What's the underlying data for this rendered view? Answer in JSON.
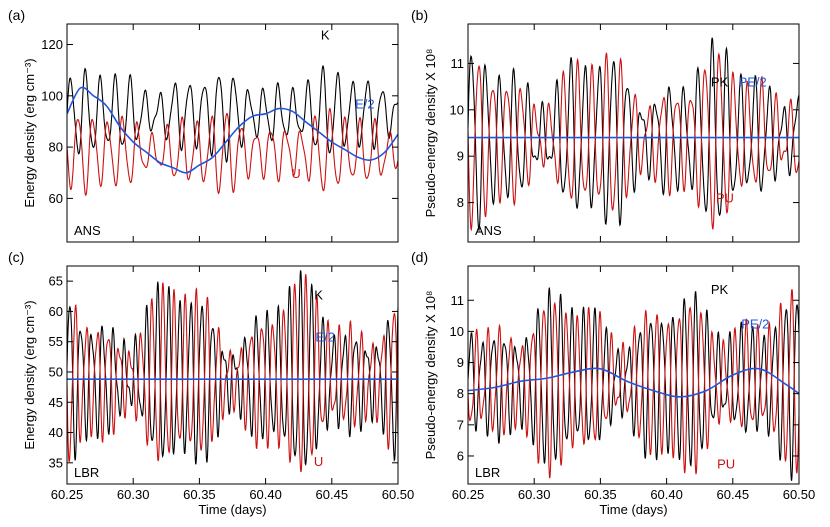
{
  "colors": {
    "K": "#000000",
    "U": "#cc1111",
    "E": "#2255dd"
  },
  "chart_data": [
    {
      "type": "line",
      "panel_label": "(a)",
      "caption": "ANS",
      "xlabel": "",
      "ylabel": "Energy density (erg cm⁻³)",
      "xlim": [
        60.25,
        60.5
      ],
      "ylim": [
        43,
        128
      ],
      "yticks": [
        60,
        80,
        100,
        120
      ],
      "xticks": [
        60.25,
        60.3,
        60.35,
        60.4,
        60.45,
        60.5
      ],
      "xtick_labels": [
        "",
        "",
        "",
        "",
        "",
        ""
      ],
      "series": [
        {
          "name": "K",
          "mean": 93,
          "amp": 15,
          "period": 0.0112,
          "phase": 0.0,
          "mod": 0.45,
          "color_key": "K"
        },
        {
          "name": "U",
          "mean": 78,
          "amp": 14,
          "period": 0.0112,
          "phase": 3.14,
          "mod": 0.45,
          "color_key": "U"
        },
        {
          "name": "E/2",
          "x": [
            60.25,
            60.26,
            60.27,
            60.28,
            60.29,
            60.3,
            60.31,
            60.32,
            60.33,
            60.34,
            60.35,
            60.36,
            60.37,
            60.38,
            60.39,
            60.4,
            60.41,
            60.42,
            60.43,
            60.44,
            60.45,
            60.46,
            60.47,
            60.48,
            60.49,
            60.5
          ],
          "y": [
            93,
            103,
            100,
            96,
            88,
            82,
            78,
            74,
            72,
            70,
            73,
            76,
            82,
            88,
            92,
            93,
            95,
            94,
            90,
            86,
            82,
            79,
            76,
            75,
            78,
            85
          ],
          "color_key": "E"
        }
      ],
      "annotations": [
        {
          "text": "K",
          "x": 60.445,
          "y": 122,
          "color_key": "K"
        },
        {
          "text": "E/2",
          "x": 60.475,
          "y": 95,
          "color_key": "E"
        },
        {
          "text": "U",
          "x": 60.423,
          "y": 68,
          "color_key": "U"
        }
      ]
    },
    {
      "type": "line",
      "panel_label": "(b)",
      "caption": "ANS",
      "xlabel": "",
      "ylabel": "Pseudo-energy density X 10⁸",
      "xlim": [
        60.25,
        60.5
      ],
      "ylim": [
        7.15,
        11.85
      ],
      "yticks": [
        8,
        9,
        10,
        11
      ],
      "xticks": [
        60.25,
        60.3,
        60.35,
        60.4,
        60.45,
        60.5
      ],
      "xtick_labels": [
        "",
        "",
        "",
        "",
        "",
        ""
      ],
      "series": [
        {
          "name": "PK",
          "mean": 9.4,
          "amp": 1.7,
          "period": 0.0107,
          "phase": 0.0,
          "mod": 0.55,
          "color_key": "K"
        },
        {
          "name": "PU",
          "mean": 9.4,
          "amp": 1.6,
          "period": 0.0107,
          "phase": 3.14,
          "mod": 0.55,
          "color_key": "U"
        },
        {
          "name": "PE/2",
          "x": [
            60.25,
            60.5
          ],
          "y": [
            9.4,
            9.4
          ],
          "color_key": "E"
        }
      ],
      "annotations": [
        {
          "text": "PK",
          "x": 60.44,
          "y": 10.5,
          "color_key": "K"
        },
        {
          "text": "PE/2",
          "x": 60.465,
          "y": 10.5,
          "color_key": "E"
        },
        {
          "text": "PU",
          "x": 60.444,
          "y": 8.0,
          "color_key": "U"
        }
      ]
    },
    {
      "type": "line",
      "panel_label": "(c)",
      "caption": "LBR",
      "xlabel": "Time (days)",
      "ylabel": "Energy density (erg cm⁻³)",
      "xlim": [
        60.25,
        60.5
      ],
      "ylim": [
        31.5,
        67.5
      ],
      "yticks": [
        35,
        40,
        45,
        50,
        55,
        60,
        65
      ],
      "xticks": [
        60.25,
        60.3,
        60.35,
        60.4,
        60.45,
        60.5
      ],
      "xtick_labels": [
        "60.25",
        "60.30",
        "60.35",
        "60.40",
        "60.45",
        "60.50"
      ],
      "series": [
        {
          "name": "K",
          "mean": 49,
          "amp": 14,
          "period": 0.0083,
          "phase": 0.0,
          "mod": 0.6,
          "color_key": "K"
        },
        {
          "name": "U",
          "mean": 49,
          "amp": 14,
          "period": 0.0083,
          "phase": 3.14,
          "mod": 0.6,
          "color_key": "U"
        },
        {
          "name": "E/2",
          "x": [
            60.25,
            60.5
          ],
          "y": [
            48.8,
            48.8
          ],
          "color_key": "E"
        }
      ],
      "annotations": [
        {
          "text": "K",
          "x": 60.44,
          "y": 62,
          "color_key": "K"
        },
        {
          "text": "E/2",
          "x": 60.445,
          "y": 55,
          "color_key": "E"
        },
        {
          "text": "U",
          "x": 60.44,
          "y": 34.5,
          "color_key": "U"
        }
      ]
    },
    {
      "type": "line",
      "panel_label": "(d)",
      "caption": "LBR",
      "xlabel": "Time (days)",
      "ylabel": "Pseudo-energy density X 10⁸",
      "xlim": [
        60.25,
        60.5
      ],
      "ylim": [
        5.1,
        12.1
      ],
      "yticks": [
        6,
        7,
        8,
        9,
        10,
        11
      ],
      "xticks": [
        60.25,
        60.3,
        60.35,
        60.4,
        60.45,
        60.5
      ],
      "xtick_labels": [
        "60.25",
        "60.30",
        "60.35",
        "60.40",
        "60.45",
        "60.50"
      ],
      "series": [
        {
          "name": "PK",
          "mean": 8.4,
          "amp": 2.5,
          "period": 0.0085,
          "phase": 0.0,
          "mod": 0.5,
          "color_key": "K"
        },
        {
          "name": "PU",
          "mean": 8.4,
          "amp": 2.5,
          "period": 0.0085,
          "phase": 3.14,
          "mod": 0.5,
          "color_key": "U"
        },
        {
          "name": "PE/2",
          "x": [
            60.25,
            60.27,
            60.29,
            60.31,
            60.33,
            60.35,
            60.37,
            60.39,
            60.41,
            60.43,
            60.45,
            60.47,
            60.49,
            60.5
          ],
          "y": [
            8.1,
            8.2,
            8.4,
            8.5,
            8.7,
            8.8,
            8.4,
            8.1,
            7.9,
            8.1,
            8.6,
            8.8,
            8.3,
            8.0
          ],
          "color_key": "E"
        }
      ],
      "annotations": [
        {
          "text": "PK",
          "x": 60.44,
          "y": 11.2,
          "color_key": "K"
        },
        {
          "text": "PE/2",
          "x": 60.467,
          "y": 10.1,
          "color_key": "E"
        },
        {
          "text": "PU",
          "x": 60.445,
          "y": 5.6,
          "color_key": "U"
        }
      ]
    }
  ]
}
